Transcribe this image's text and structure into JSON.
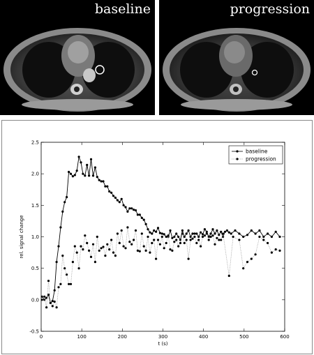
{
  "images": {
    "left_label": "baseline",
    "right_label": "progression"
  },
  "chart_data": {
    "type": "line",
    "title": "",
    "xlabel": "t (s)",
    "ylabel": "rel. signal change",
    "xlim": [
      0,
      600
    ],
    "ylim": [
      -0.5,
      2.5
    ],
    "xticks": [
      0,
      100,
      200,
      300,
      400,
      500,
      600
    ],
    "yticks": [
      -0.5,
      0.0,
      0.5,
      1.0,
      1.5,
      2.0,
      2.5
    ],
    "grid": false,
    "legend_position": "top-right",
    "series": [
      {
        "name": "baseline",
        "style": "solid",
        "color": "#000000",
        "points": [
          [
            2,
            0.05
          ],
          [
            8,
            0.0
          ],
          [
            13,
            0.03
          ],
          [
            18,
            0.08
          ],
          [
            23,
            -0.05
          ],
          [
            28,
            -0.02
          ],
          [
            33,
            0.15
          ],
          [
            38,
            0.6
          ],
          [
            43,
            0.85
          ],
          [
            48,
            1.15
          ],
          [
            53,
            1.4
          ],
          [
            58,
            1.55
          ],
          [
            63,
            1.63
          ],
          [
            68,
            2.03
          ],
          [
            73,
            2.0
          ],
          [
            78,
            1.96
          ],
          [
            83,
            1.98
          ],
          [
            88,
            2.05
          ],
          [
            93,
            2.27
          ],
          [
            98,
            2.18
          ],
          [
            103,
            2.0
          ],
          [
            108,
            1.97
          ],
          [
            113,
            2.14
          ],
          [
            118,
            1.97
          ],
          [
            123,
            2.23
          ],
          [
            128,
            1.97
          ],
          [
            133,
            2.1
          ],
          [
            138,
            1.95
          ],
          [
            143,
            1.9
          ],
          [
            148,
            1.88
          ],
          [
            153,
            1.88
          ],
          [
            158,
            1.8
          ],
          [
            163,
            1.8
          ],
          [
            168,
            1.72
          ],
          [
            173,
            1.7
          ],
          [
            178,
            1.65
          ],
          [
            183,
            1.62
          ],
          [
            188,
            1.58
          ],
          [
            193,
            1.55
          ],
          [
            198,
            1.6
          ],
          [
            203,
            1.5
          ],
          [
            208,
            1.47
          ],
          [
            213,
            1.4
          ],
          [
            218,
            1.45
          ],
          [
            223,
            1.45
          ],
          [
            228,
            1.43
          ],
          [
            233,
            1.42
          ],
          [
            238,
            1.35
          ],
          [
            243,
            1.35
          ],
          [
            248,
            1.3
          ],
          [
            253,
            1.27
          ],
          [
            258,
            1.2
          ],
          [
            263,
            1.12
          ],
          [
            268,
            1.07
          ],
          [
            273,
            1.05
          ],
          [
            278,
            1.1
          ],
          [
            283,
            1.08
          ],
          [
            288,
            1.14
          ],
          [
            293,
            1.06
          ],
          [
            298,
            1.05
          ],
          [
            303,
            1.04
          ],
          [
            308,
            1.0
          ],
          [
            313,
            1.0
          ],
          [
            318,
            1.1
          ],
          [
            323,
            0.98
          ],
          [
            328,
            1.0
          ],
          [
            333,
            1.05
          ],
          [
            338,
            1.0
          ],
          [
            343,
            0.95
          ],
          [
            348,
            1.1
          ],
          [
            353,
            1.0
          ],
          [
            358,
            1.05
          ],
          [
            363,
            1.1
          ],
          [
            368,
            1.0
          ],
          [
            373,
            1.05
          ],
          [
            378,
            1.05
          ],
          [
            383,
            1.05
          ],
          [
            388,
            1.0
          ],
          [
            393,
            1.07
          ],
          [
            398,
            1.04
          ],
          [
            403,
            1.12
          ],
          [
            408,
            1.08
          ],
          [
            413,
            1.0
          ],
          [
            418,
            1.05
          ],
          [
            423,
            1.12
          ],
          [
            428,
            1.05
          ],
          [
            433,
            1.1
          ],
          [
            438,
            1.03
          ],
          [
            443,
            1.08
          ],
          [
            448,
            1.0
          ],
          [
            453,
            1.08
          ],
          [
            458,
            1.1
          ],
          [
            463,
            1.07
          ],
          [
            468,
            1.05
          ],
          [
            478,
            1.1
          ],
          [
            488,
            1.05
          ],
          [
            498,
            1.0
          ],
          [
            508,
            1.03
          ],
          [
            518,
            1.1
          ],
          [
            528,
            1.05
          ],
          [
            538,
            1.1
          ],
          [
            548,
            1.0
          ],
          [
            558,
            1.05
          ],
          [
            568,
            1.0
          ],
          [
            578,
            1.08
          ],
          [
            588,
            1.0
          ]
        ]
      },
      {
        "name": "progression",
        "style": "dotted",
        "color": "#000000",
        "points": [
          [
            2,
            0.0
          ],
          [
            8,
            0.05
          ],
          [
            13,
            -0.12
          ],
          [
            18,
            0.3
          ],
          [
            23,
            -0.05
          ],
          [
            28,
            -0.1
          ],
          [
            33,
            -0.03
          ],
          [
            38,
            -0.12
          ],
          [
            43,
            0.2
          ],
          [
            48,
            0.25
          ],
          [
            53,
            0.7
          ],
          [
            58,
            0.5
          ],
          [
            63,
            0.4
          ],
          [
            68,
            0.25
          ],
          [
            73,
            0.25
          ],
          [
            78,
            0.6
          ],
          [
            83,
            0.85
          ],
          [
            88,
            0.75
          ],
          [
            93,
            0.5
          ],
          [
            98,
            0.85
          ],
          [
            103,
            0.8
          ],
          [
            108,
            1.02
          ],
          [
            113,
            0.9
          ],
          [
            118,
            0.78
          ],
          [
            123,
            0.68
          ],
          [
            128,
            0.88
          ],
          [
            133,
            0.6
          ],
          [
            138,
            1.0
          ],
          [
            143,
            0.78
          ],
          [
            148,
            0.82
          ],
          [
            153,
            0.84
          ],
          [
            158,
            0.7
          ],
          [
            163,
            0.88
          ],
          [
            168,
            0.8
          ],
          [
            173,
            0.95
          ],
          [
            178,
            0.75
          ],
          [
            183,
            0.7
          ],
          [
            188,
            1.05
          ],
          [
            193,
            0.9
          ],
          [
            198,
            1.1
          ],
          [
            203,
            0.85
          ],
          [
            208,
            0.82
          ],
          [
            213,
            1.15
          ],
          [
            218,
            0.92
          ],
          [
            223,
            0.88
          ],
          [
            228,
            0.95
          ],
          [
            233,
            1.1
          ],
          [
            238,
            0.78
          ],
          [
            243,
            0.77
          ],
          [
            248,
            1.05
          ],
          [
            253,
            0.85
          ],
          [
            258,
            0.78
          ],
          [
            263,
            1.0
          ],
          [
            268,
            0.75
          ],
          [
            273,
            0.9
          ],
          [
            278,
            0.95
          ],
          [
            283,
            0.65
          ],
          [
            288,
            0.95
          ],
          [
            293,
            0.88
          ],
          [
            298,
            1.0
          ],
          [
            303,
            0.82
          ],
          [
            308,
            0.9
          ],
          [
            313,
            1.02
          ],
          [
            318,
            0.8
          ],
          [
            323,
            0.78
          ],
          [
            328,
            0.92
          ],
          [
            333,
            0.95
          ],
          [
            338,
            0.85
          ],
          [
            343,
            0.9
          ],
          [
            348,
            1.05
          ],
          [
            353,
            0.9
          ],
          [
            358,
            0.95
          ],
          [
            363,
            0.65
          ],
          [
            368,
            0.95
          ],
          [
            373,
            0.97
          ],
          [
            378,
            1.0
          ],
          [
            383,
            0.9
          ],
          [
            388,
            0.95
          ],
          [
            393,
            0.85
          ],
          [
            398,
            1.0
          ],
          [
            403,
            1.02
          ],
          [
            408,
            1.05
          ],
          [
            413,
            0.95
          ],
          [
            418,
            1.0
          ],
          [
            423,
            1.02
          ],
          [
            428,
            0.88
          ],
          [
            433,
            0.98
          ],
          [
            438,
            0.95
          ],
          [
            443,
            0.95
          ],
          [
            448,
            1.05
          ],
          [
            463,
            0.38
          ],
          [
            473,
            1.0
          ],
          [
            488,
            0.95
          ],
          [
            498,
            0.5
          ],
          [
            508,
            0.6
          ],
          [
            518,
            0.65
          ],
          [
            528,
            0.72
          ],
          [
            538,
            1.0
          ],
          [
            548,
            0.95
          ],
          [
            558,
            0.9
          ],
          [
            568,
            0.75
          ],
          [
            578,
            0.8
          ],
          [
            588,
            0.78
          ]
        ]
      }
    ]
  }
}
